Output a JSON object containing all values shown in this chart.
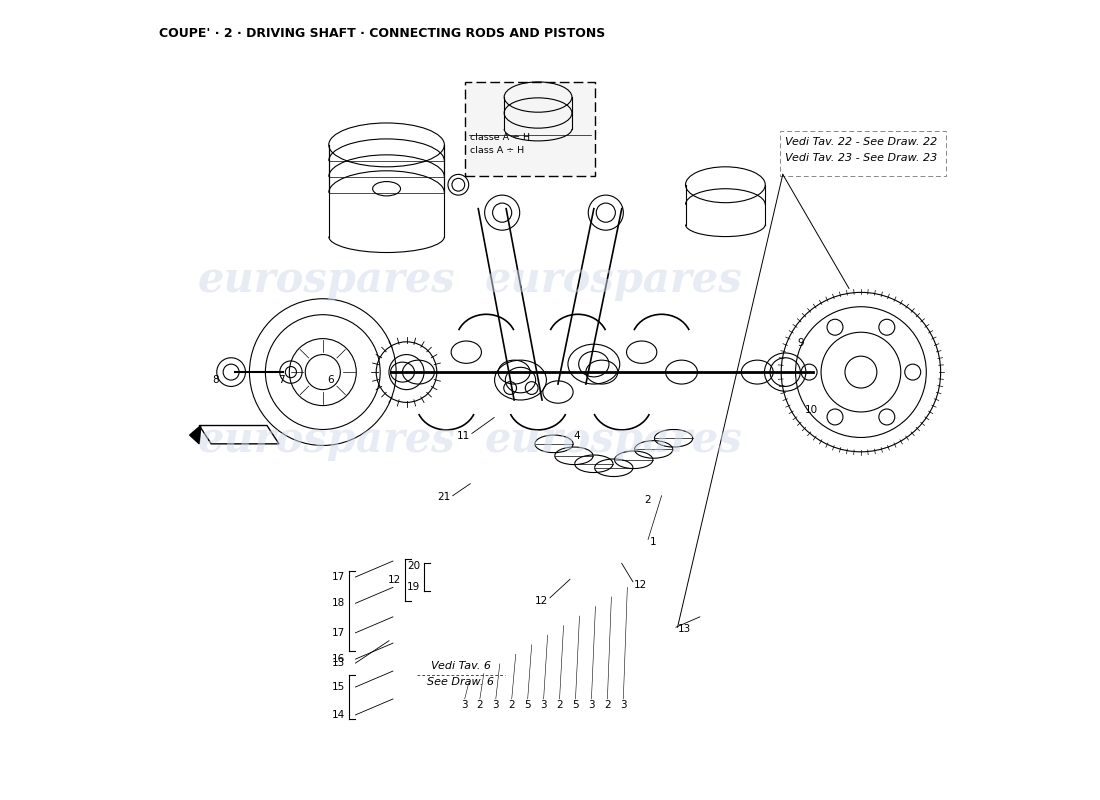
{
  "title": "COUPE' · 2 · DRIVING SHAFT · CONNECTING RODS AND PISTONS",
  "watermark": "eurospares",
  "background_color": "#ffffff",
  "line_color": "#000000",
  "title_fontsize": 9,
  "watermark_color": "#d0d8e8",
  "ref_text_top_1": "Vedi Tav. 22 - See Draw. 22",
  "ref_text_top_2": "Vedi Tav. 23 - See Draw. 23",
  "ref_text_bottom_1": "Vedi Tav. 6",
  "ref_text_bottom_2": "See Draw. 6"
}
